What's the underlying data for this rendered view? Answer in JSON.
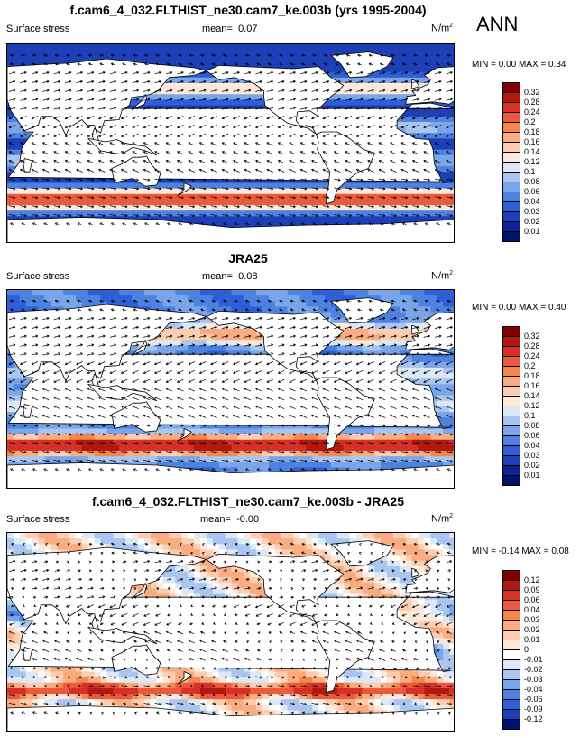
{
  "season": "ANN",
  "panels": [
    {
      "title": "f.cam6_4_032.FLTHIST_ne30.cam7_ke.003b (yrs 1995-2004)",
      "variable": "Surface stress",
      "mean_label": "mean=",
      "mean": "0.07",
      "units": "N/m",
      "units_sup": "2",
      "min_max": "MIN =  0.00 MAX =  0.34",
      "contour_labels": [
        "0.32",
        "0.28",
        "0.24",
        "0.2",
        "0.18",
        "0.16",
        "0.14",
        "0.12",
        "0.1",
        "0.08",
        "0.06",
        "0.04",
        "0.03",
        "0.02",
        "0.01"
      ],
      "field": "model"
    },
    {
      "title": "JRA25",
      "variable": "Surface stress",
      "mean_label": "mean=",
      "mean": "0.08",
      "units": "N/m",
      "units_sup": "2",
      "min_max": "MIN =  0.00 MAX =  0.40",
      "contour_labels": [
        "0.32",
        "0.28",
        "0.24",
        "0.2",
        "0.18",
        "0.16",
        "0.14",
        "0.12",
        "0.1",
        "0.08",
        "0.06",
        "0.04",
        "0.03",
        "0.02",
        "0.01"
      ],
      "field": "obs"
    },
    {
      "title": "f.cam6_4_032.FLTHIST_ne30.cam7_ke.003b - JRA25",
      "variable": "Surface stress",
      "mean_label": "mean=",
      "mean": "-0.00",
      "units": "N/m",
      "units_sup": "2",
      "min_max": "MIN = -0.14 MAX =  0.08",
      "contour_labels": [
        "0.12",
        "0.09",
        "0.06",
        "0.04",
        "0.03",
        "0.02",
        "0.01",
        "0",
        "-0.01",
        "-0.02",
        "-0.03",
        "-0.04",
        "-0.06",
        "-0.09",
        "-0.12"
      ],
      "field": "diff"
    }
  ],
  "colors": {
    "abs_palette": [
      "#7f0000",
      "#b2180e",
      "#d73027",
      "#ea5a3b",
      "#f4874f",
      "#f9ac80",
      "#fccdb0",
      "#fde9da",
      "#dbe8f7",
      "#a8c6ef",
      "#7aa5e8",
      "#4e82e0",
      "#2f5fd6",
      "#1d3fb8",
      "#0d2391",
      "#00136b"
    ],
    "diff_palette": [
      "#7f0000",
      "#b2180e",
      "#d73027",
      "#ea5a3b",
      "#f4874f",
      "#f9ac80",
      "#fccdb0",
      "#fde9da",
      "#ffffff",
      "#dbe8f7",
      "#a8c6ef",
      "#7aa5e8",
      "#4e82e0",
      "#2f5fd6",
      "#1d3fb8",
      "#00136b"
    ],
    "land": "#ffffff",
    "coast": "#000000"
  }
}
